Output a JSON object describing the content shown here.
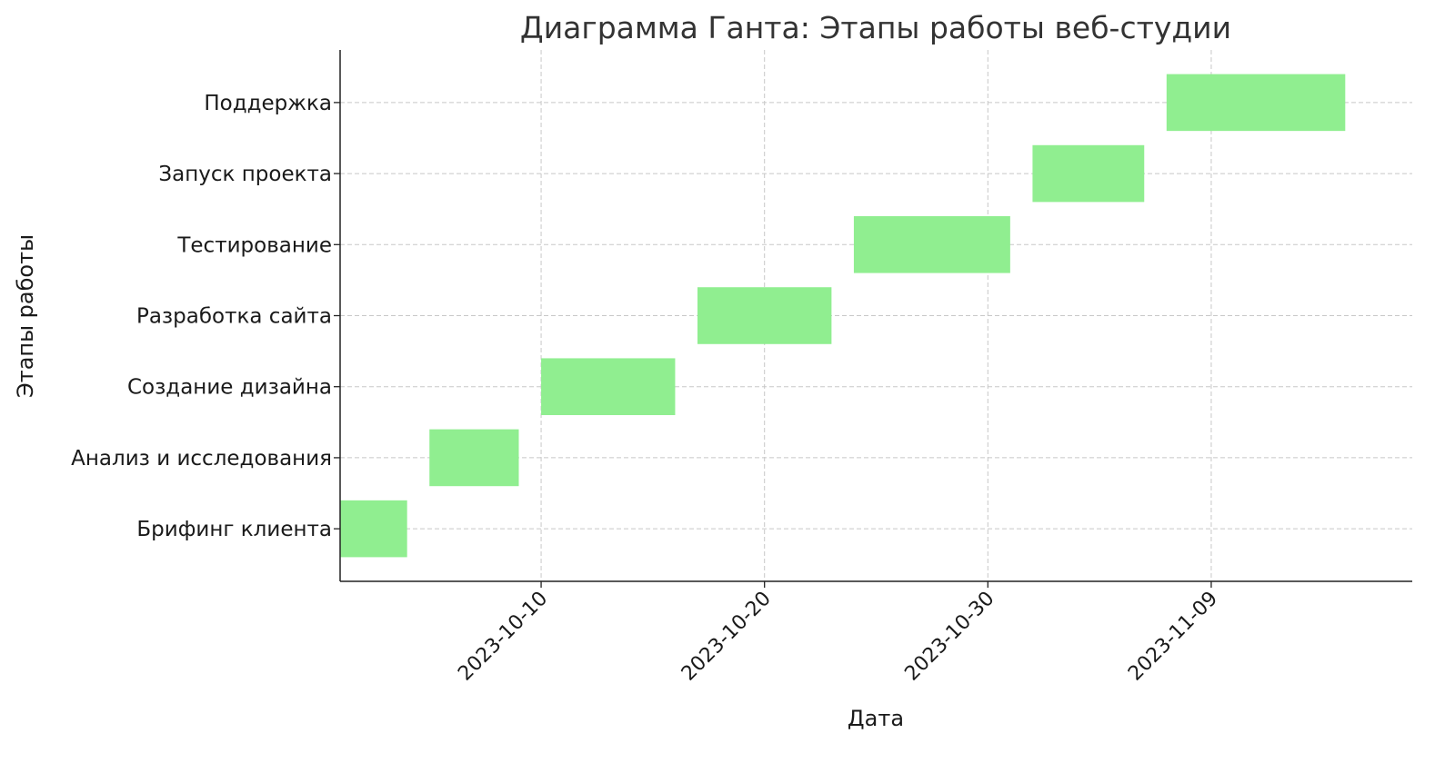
{
  "chart_data": {
    "type": "gantt",
    "title": "Диаграмма Ганта: Этапы работы веб-студии",
    "xlabel": "Дата",
    "ylabel": "Этапы работы",
    "xlim": [
      "2023-10-01",
      "2023-11-18"
    ],
    "grid": true,
    "bar_color": "#90EE90",
    "x_ticks": [
      "2023-10-10",
      "2023-10-20",
      "2023-10-30",
      "2023-11-09"
    ],
    "tasks": [
      {
        "name": "Брифинг клиента",
        "start": "2023-10-01",
        "end": "2023-10-04"
      },
      {
        "name": "Анализ и исследования",
        "start": "2023-10-05",
        "end": "2023-10-09"
      },
      {
        "name": "Создание дизайна",
        "start": "2023-10-10",
        "end": "2023-10-16"
      },
      {
        "name": "Разработка сайта",
        "start": "2023-10-17",
        "end": "2023-10-23"
      },
      {
        "name": "Тестирование",
        "start": "2023-10-24",
        "end": "2023-10-31"
      },
      {
        "name": "Запуск проекта",
        "start": "2023-11-01",
        "end": "2023-11-06"
      },
      {
        "name": "Поддержка",
        "start": "2023-11-07",
        "end": "2023-11-15"
      }
    ]
  }
}
